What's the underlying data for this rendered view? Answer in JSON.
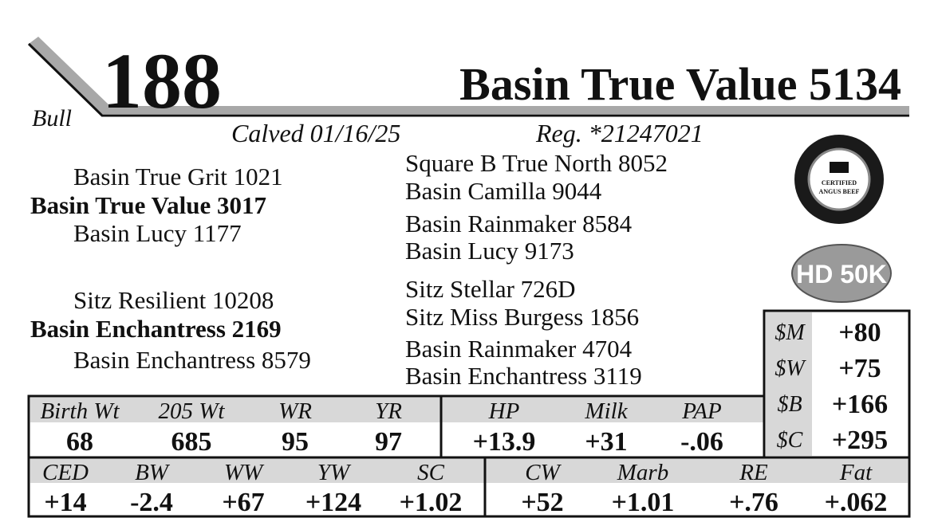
{
  "header": {
    "lot": "188",
    "name": "Basin True Value 5134",
    "sex": "Bull",
    "calved": "Calved 01/16/25",
    "registration": "Reg. *21247021"
  },
  "pedigree": {
    "sire": {
      "name": "Basin True Value 3017",
      "sire": "Basin True Grit 1021",
      "dam": "Basin Lucy 1177"
    },
    "dam": {
      "name": "Basin Enchantress 2169",
      "sire": "Sitz Resilient 10208",
      "dam": "Basin Enchantress 8579"
    },
    "third_generation": [
      "Square B True North 8052",
      "Basin Camilla 9044",
      "Basin Rainmaker 8584",
      "Basin Lucy 9173",
      "Sitz Stellar 726D",
      "Sitz Miss Burgess 1856",
      "Basin Rainmaker 4704",
      "Basin Enchantress 3119"
    ]
  },
  "badges": {
    "cab": [
      "CERTIFIED",
      "ANGUS BEEF"
    ],
    "genomics": "HD 50K"
  },
  "indexes": {
    "rows": [
      [
        "$M",
        "+80"
      ],
      [
        "$W",
        "+75"
      ],
      [
        "$B",
        "+166"
      ],
      [
        "$C",
        "+295"
      ]
    ]
  },
  "performance": {
    "headers": [
      "Birth Wt",
      "205 Wt",
      "WR",
      "YR",
      "HP",
      "Milk",
      "PAP"
    ],
    "values": [
      "68",
      "685",
      "95",
      "97",
      "+13.9",
      "+31",
      "-.06"
    ]
  },
  "epds": {
    "headers": [
      "CED",
      "BW",
      "WW",
      "YW",
      "SC",
      "CW",
      "Marb",
      "RE",
      "Fat"
    ],
    "values": [
      "+14",
      "-2.4",
      "+67",
      "+124",
      "+1.02",
      "+52",
      "+1.01",
      "+.76",
      "+.062"
    ]
  }
}
